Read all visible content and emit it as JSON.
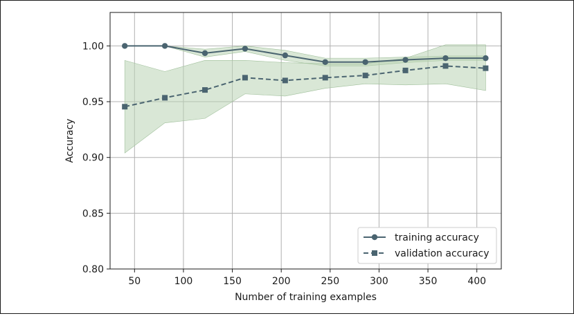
{
  "chart_data": {
    "type": "line",
    "xlabel": "Number of training examples",
    "ylabel": "Accuracy",
    "xlim": [
      25,
      425
    ],
    "ylim": [
      0.8,
      1.03
    ],
    "x_ticks": [
      50,
      100,
      150,
      200,
      250,
      300,
      350,
      400
    ],
    "y_ticks": [
      0.8,
      0.85,
      0.9,
      0.95,
      1.0
    ],
    "y_tick_labels": [
      "0.80",
      "0.85",
      "0.90",
      "0.95",
      "1.00"
    ],
    "grid": true,
    "legend_position": "bottom-right",
    "x": [
      40,
      81,
      122,
      163,
      204,
      245,
      286,
      327,
      368,
      409
    ],
    "series": [
      {
        "name": "training accuracy",
        "marker": "circle",
        "linestyle": "solid",
        "color": "#4a6470",
        "values": [
          1.0,
          1.0,
          0.9935,
          0.9975,
          0.9915,
          0.9855,
          0.9855,
          0.9875,
          0.989,
          0.989
        ],
        "band_upper": [
          1.0,
          1.0,
          0.997,
          1.0,
          0.996,
          0.989,
          0.989,
          0.99,
          0.991,
          0.991
        ],
        "band_lower": [
          1.0,
          1.0,
          0.99,
          0.995,
          0.987,
          0.982,
          0.982,
          0.985,
          0.987,
          0.987
        ]
      },
      {
        "name": "validation accuracy",
        "marker": "square",
        "linestyle": "dashed",
        "color": "#4a6470",
        "values": [
          0.9455,
          0.9535,
          0.9605,
          0.9715,
          0.969,
          0.9715,
          0.9735,
          0.978,
          0.982,
          0.98
        ],
        "band_upper": [
          0.987,
          0.977,
          0.987,
          0.987,
          0.985,
          0.984,
          0.984,
          0.989,
          1.001,
          1.001
        ],
        "band_lower": [
          0.904,
          0.931,
          0.935,
          0.957,
          0.955,
          0.962,
          0.966,
          0.965,
          0.966,
          0.96
        ]
      }
    ],
    "colors": {
      "line": "#4a6470",
      "band": "#b9d3b4",
      "band_edge": "#9fbf9a",
      "grid": "#b0b0b0",
      "axes": "#1a1a1a"
    }
  }
}
